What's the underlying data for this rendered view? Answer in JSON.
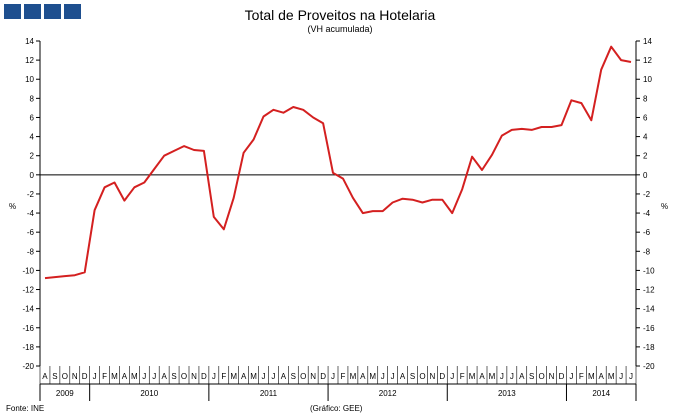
{
  "logo": {
    "name": "ine-logo",
    "color": "#1e4f8f",
    "blocks": 4
  },
  "chart_data": {
    "type": "line",
    "title": "Total de Proveitos na Hotelaria",
    "subtitle": "(VH acumulada)",
    "ylabel": "%",
    "ylim": [
      -20,
      14
    ],
    "yticks": [
      14,
      12,
      10,
      8,
      6,
      4,
      2,
      0,
      -2,
      -4,
      -6,
      -8,
      -10,
      -12,
      -14,
      -16,
      -18,
      -20
    ],
    "grid": false,
    "line_color": "#d42020",
    "months": [
      "A",
      "S",
      "O",
      "N",
      "D",
      "J",
      "F",
      "M",
      "A",
      "M",
      "J",
      "J",
      "A",
      "S",
      "O",
      "N",
      "D",
      "J",
      "F",
      "M",
      "A",
      "M",
      "J",
      "J",
      "A",
      "S",
      "O",
      "N",
      "D",
      "J",
      "F",
      "M",
      "A",
      "M",
      "J",
      "J",
      "A",
      "S",
      "O",
      "N",
      "D",
      "J",
      "F",
      "M",
      "A",
      "M",
      "J",
      "J",
      "A",
      "S",
      "O",
      "N",
      "D",
      "J",
      "F",
      "M",
      "A",
      "M",
      "J",
      "J"
    ],
    "years": [
      {
        "label": "2009",
        "count": 5
      },
      {
        "label": "2010",
        "count": 12
      },
      {
        "label": "2011",
        "count": 12
      },
      {
        "label": "2012",
        "count": 12
      },
      {
        "label": "2013",
        "count": 12
      },
      {
        "label": "2014",
        "count": 7
      }
    ],
    "series": [
      {
        "values": [
          -10.8,
          -10.7,
          -10.6,
          -10.5,
          -10.2,
          -3.7,
          -1.3,
          -0.8,
          -2.7,
          -1.3,
          -0.8,
          0.6,
          2.0,
          2.5,
          3.0,
          2.6,
          2.5,
          -4.4,
          -5.7,
          -2.4,
          2.3,
          3.7,
          6.1,
          6.8,
          6.5,
          7.1,
          6.8,
          6.0,
          5.4,
          0.2,
          -0.4,
          -2.4,
          -4.0,
          -3.8,
          -3.8,
          -2.9,
          -2.5,
          -2.6,
          -2.9,
          -2.6,
          -2.6,
          -4.0,
          -1.5,
          1.9,
          0.5,
          2.1,
          4.1,
          4.7,
          4.8,
          4.7,
          5.0,
          5.0,
          5.2,
          7.8,
          7.5,
          5.7,
          11.0,
          13.4,
          12.0,
          11.8
        ]
      }
    ]
  },
  "footer": {
    "source": "Fonte: INE",
    "credit": "(Gráfico: GEE)"
  }
}
